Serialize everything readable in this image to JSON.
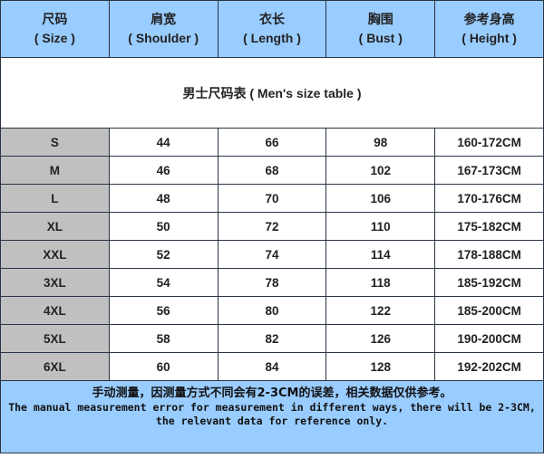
{
  "header": [
    {
      "cn": "尺码",
      "en": "( Size )"
    },
    {
      "cn": "肩宽",
      "en": "( Shoulder )"
    },
    {
      "cn": "衣长",
      "en": "( Length )"
    },
    {
      "cn": "胸围",
      "en": "( Bust )"
    },
    {
      "cn": "参考身高",
      "en": "( Height )"
    }
  ],
  "table_title": "男士尺码表 ( Men's size table )",
  "rows": [
    [
      "S",
      "44",
      "66",
      "98",
      "160-172CM"
    ],
    [
      "M",
      "46",
      "68",
      "102",
      "167-173CM"
    ],
    [
      "L",
      "48",
      "70",
      "106",
      "170-176CM"
    ],
    [
      "XL",
      "50",
      "72",
      "110",
      "175-182CM"
    ],
    [
      "XXL",
      "52",
      "74",
      "114",
      "178-188CM"
    ],
    [
      "3XL",
      "54",
      "78",
      "118",
      "185-192CM"
    ],
    [
      "4XL",
      "56",
      "80",
      "122",
      "185-200CM"
    ],
    [
      "5XL",
      "58",
      "82",
      "126",
      "190-200CM"
    ],
    [
      "6XL",
      "60",
      "84",
      "128",
      "192-202CM"
    ]
  ],
  "note": {
    "cn": "手动测量，因测量方式不同会有2-3CM的误差，相关数据仅供参考。",
    "en": "The manual measurement error for measurement in different ways, there will be 2-3CM, the relevant data for reference only."
  },
  "colors": {
    "header_bg": "#99ccff",
    "size_col_bg": "#c0c0c0",
    "border": "#2a3545"
  }
}
